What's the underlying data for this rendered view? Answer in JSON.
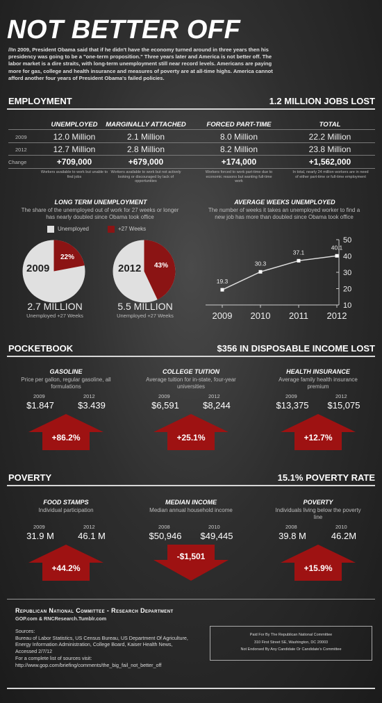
{
  "header": {
    "title": "NOT BETTER OFF",
    "intro": "//In 2009, President Obama said that if he didn't have the economy turned around in three years then his presidency was going to be a \"one-term proposition.\" Three years later and America is not better off. The labor market is a dire straits, with long-term unemployment still near record levels. Americans are paying more for gas, college and health insurance and measures of poverty are at all-time highs. America cannot afford another four years of President Obama's failed policies."
  },
  "employment": {
    "heading": "EMPLOYMENT",
    "headline": "1.2 MILLION JOBS LOST",
    "columns": [
      "UNEMPLOYED",
      "MARGINALLY ATTACHED",
      "FORCED PART-TIME",
      "TOTAL"
    ],
    "rows": [
      {
        "label": "2009",
        "values": [
          "12.0 Million",
          "2.1 Million",
          "8.0 Million",
          "22.2 Million"
        ]
      },
      {
        "label": "2012",
        "values": [
          "12.7 Million",
          "2.8 Million",
          "8.2 Million",
          "23.8 Million"
        ]
      },
      {
        "label": "Change",
        "values": [
          "+709,000",
          "+679,000",
          "+174,000",
          "+1,562,000"
        ]
      }
    ],
    "notes": [
      "Workers available to work but unable to find jobs",
      "Workers available to work but not actively looking or discouraged by lack of opportunities",
      "Workers forced to work part-time due to economic reasons but wanting full-time work",
      "In total, nearly 24 million workers are in need of either part-time or full-time employment"
    ]
  },
  "long_term": {
    "title": "LONG TERM UNEMPLOYMENT",
    "desc": "The share of the unemployed out of work for 27 weeks or longer has nearly doubled since Obama took office",
    "legend": [
      "Unemployed",
      "+27 Weeks"
    ],
    "pies": [
      {
        "year": "2009",
        "pct_label": "22%",
        "share": 0.22,
        "total": "2.7 MILLION",
        "caption": "Unemployed +27 Weeks"
      },
      {
        "year": "2012",
        "pct_label": "43%",
        "share": 0.43,
        "total": "5.5 MILLION",
        "caption": "Unemployed +27 Weeks"
      }
    ],
    "colors": {
      "unemployed": "#e0e0e0",
      "long": "#8b1414"
    }
  },
  "avg_weeks": {
    "title": "AVERAGE WEEKS UNEMPLOYED",
    "desc": "The number of weeks it takes an unemployed worker to find a new job has more than doubled since Obama took office"
  },
  "chart_data": {
    "type": "line",
    "categories": [
      "2009",
      "2010",
      "2011",
      "2012"
    ],
    "values": [
      19.3,
      30.3,
      37.1,
      40.1
    ],
    "labels": [
      "19.3",
      "30.3",
      "37.1",
      "40.1"
    ],
    "yticks": [
      "10",
      "20",
      "30",
      "40",
      "50"
    ],
    "ylim": [
      10,
      50
    ]
  },
  "pocketbook": {
    "heading": "POCKETBOOK",
    "headline": "$356 IN DISPOSABLE INCOME LOST",
    "items": [
      {
        "title": "GASOLINE",
        "desc": "Price per gallon, regular gasoline, all formulations",
        "y1": "2009",
        "y2": "2012",
        "v1": "$1.847",
        "v2": "$3.439",
        "change": "+86.2%"
      },
      {
        "title": "COLLEGE TUITION",
        "desc": "Average tuition for in-state, four-year universities",
        "y1": "2009",
        "y2": "2012",
        "v1": "$6,591",
        "v2": "$8,244",
        "change": "+25.1%"
      },
      {
        "title": "HEALTH INSURANCE",
        "desc": "Average family health insurance premium",
        "y1": "2009",
        "y2": "2012",
        "v1": "$13,375",
        "v2": "$15,075",
        "change": "+12.7%"
      }
    ]
  },
  "poverty": {
    "heading": "POVERTY",
    "headline": "15.1% POVERTY RATE",
    "items": [
      {
        "title": "FOOD STAMPS",
        "desc": "Individual participation",
        "y1": "2009",
        "y2": "2012",
        "v1": "31.9 M",
        "v2": "46.1 M",
        "change": "+44.2%",
        "dir": "up"
      },
      {
        "title": "MEDIAN INCOME",
        "desc": "Median annual household income",
        "y1": "2008",
        "y2": "2010",
        "v1": "$50,946",
        "v2": "$49,445",
        "change": "-$1,501",
        "dir": "down"
      },
      {
        "title": "POVERTY",
        "desc": "Individuals living below the poverty line",
        "y1": "2008",
        "y2": "2010",
        "v1": "39.8 M",
        "v2": "46.2M",
        "change": "+15.9%",
        "dir": "up"
      }
    ]
  },
  "footer": {
    "org": "Republican National Committee - Research Department",
    "sites": "GOP.com & RNCResearch.Tumblr.com",
    "sources_label": "Sources:",
    "sources": "Bureau of Labor Statistics, US Census Bureau, US Department Of Agriculture, Energy Information Administration, College Board, Kaiser Health News, Accessed 2/7/12",
    "complete_label": "For a complete list of sources visit:",
    "url": "http://www.gop.com/briefing/comments/the_big_fail_not_better_off",
    "paid_for": "Paid For By The Republican National Committee",
    "address": "310 First Street SE, Washington, DC 20003",
    "not_endorsed": "Not Endorsed By Any Candidate Or Candidate's Committee"
  },
  "colors": {
    "accent_red": "#8b1414",
    "arrow_red": "#9e1212"
  }
}
